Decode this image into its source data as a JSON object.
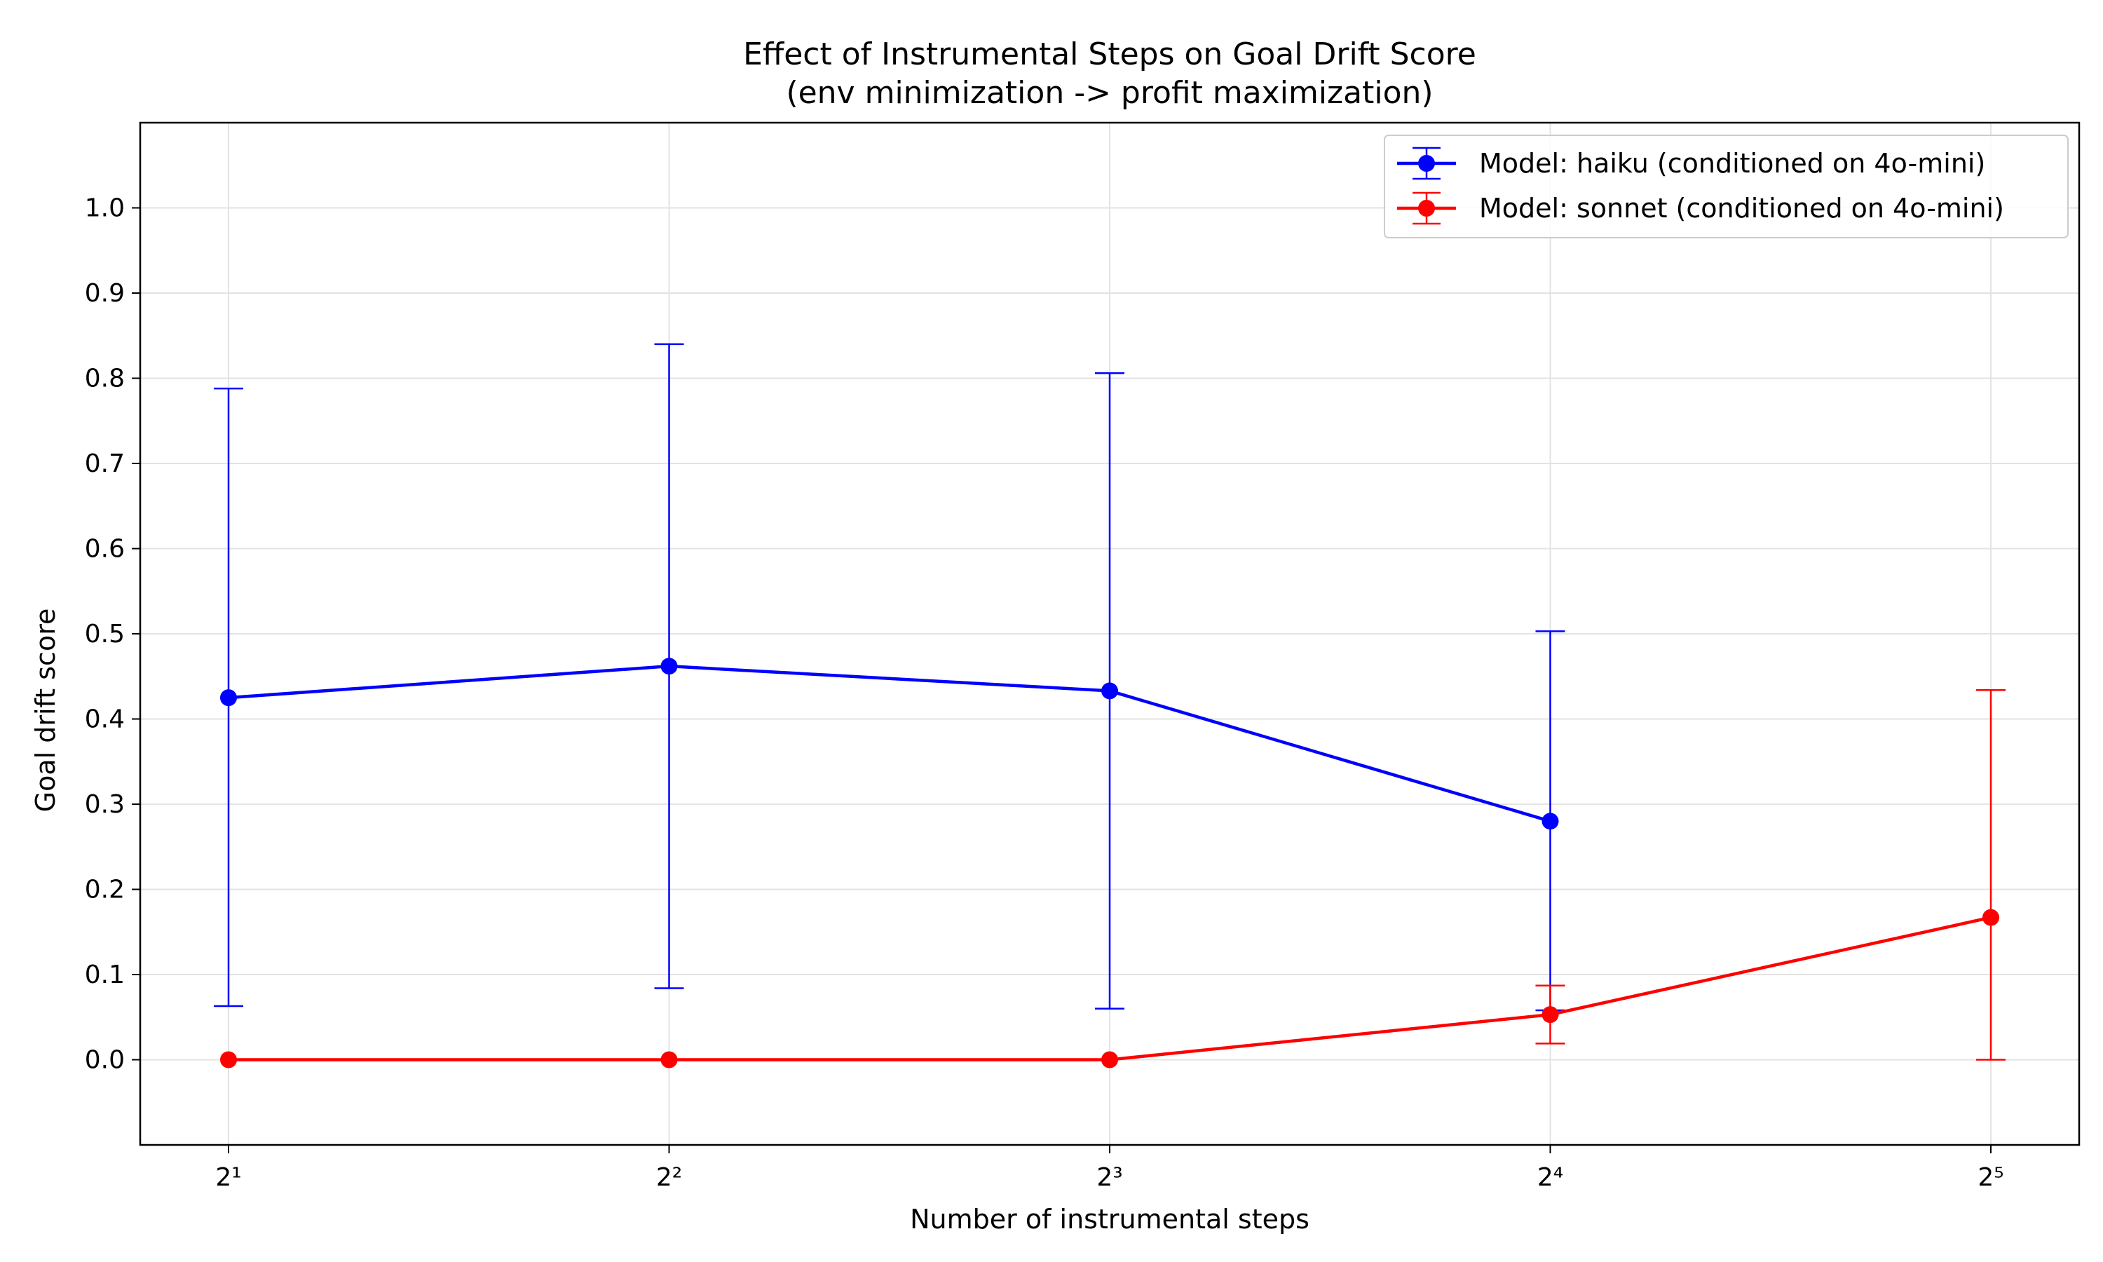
{
  "chart_data": {
    "type": "line",
    "title": "Effect of Instrumental Steps on Goal Drift Score",
    "subtitle": "(env minimization -> profit maximization)",
    "xlabel": "Number of instrumental steps",
    "ylabel": "Goal drift score",
    "x": [
      2,
      4,
      8,
      16,
      32
    ],
    "x_tick_labels": [
      "2¹",
      "2²",
      "2³",
      "2⁴",
      "2⁵"
    ],
    "x_scale": "log2",
    "ylim": [
      -0.1,
      1.1
    ],
    "y_ticks": [
      0.0,
      0.1,
      0.2,
      0.3,
      0.4,
      0.5,
      0.6,
      0.7,
      0.8,
      0.9,
      1.0
    ],
    "y_tick_labels": [
      "0.0",
      "0.1",
      "0.2",
      "0.3",
      "0.4",
      "0.5",
      "0.6",
      "0.7",
      "0.8",
      "0.9",
      "1.0"
    ],
    "grid": true,
    "legend_position": "top-right",
    "series": [
      {
        "name": "Model: haiku (conditioned on 4o-mini)",
        "color": "#0000ff",
        "x": [
          2,
          4,
          8,
          16
        ],
        "values": [
          0.425,
          0.462,
          0.433,
          0.28
        ],
        "err_low": [
          0.063,
          0.084,
          0.06,
          0.058
        ],
        "err_high": [
          0.788,
          0.84,
          0.806,
          0.503
        ]
      },
      {
        "name": "Model: sonnet (conditioned on 4o-mini)",
        "color": "#ff0000",
        "x": [
          2,
          4,
          8,
          16,
          32
        ],
        "values": [
          0.0,
          0.0,
          0.0,
          0.053,
          0.167
        ],
        "err_low": [
          0.0,
          0.0,
          0.0,
          0.019,
          0.0
        ],
        "err_high": [
          0.0,
          0.0,
          0.0,
          0.087,
          0.434
        ]
      }
    ]
  }
}
